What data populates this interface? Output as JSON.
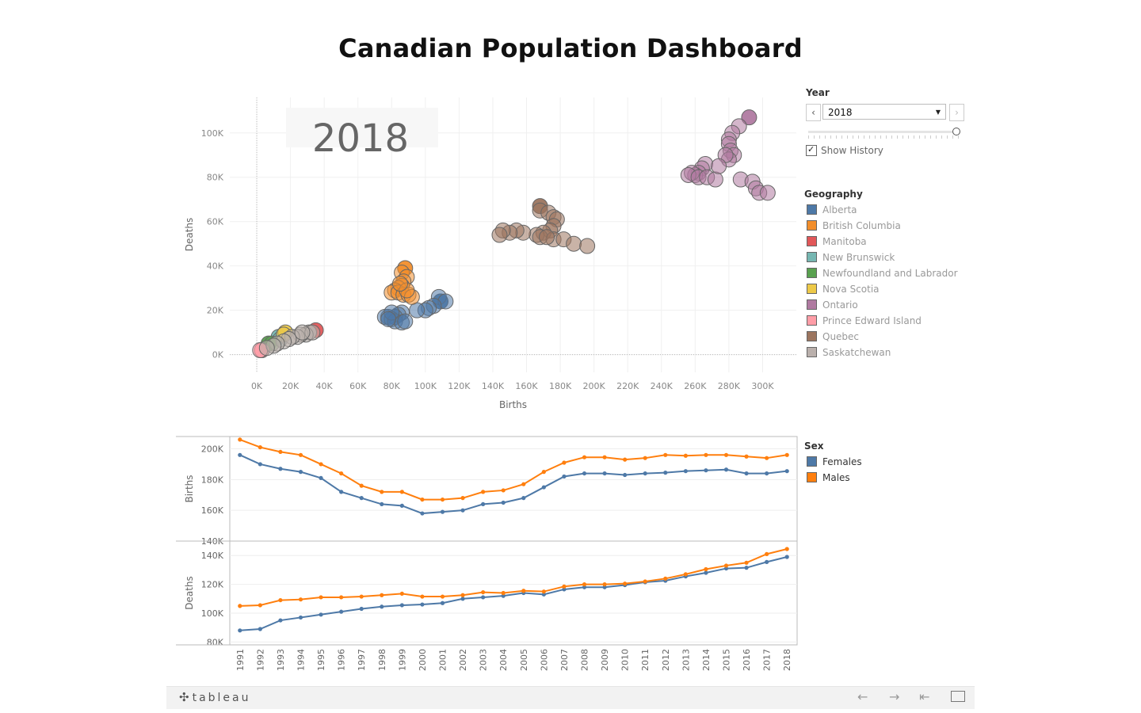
{
  "title": "Canadian Population Dashboard",
  "year_filter": {
    "label": "Year",
    "value": "2018",
    "prev_icon": "chevron-left-icon",
    "next_icon": "chevron-right-icon",
    "history_label": "Show History",
    "history_checked": true
  },
  "geography_legend": {
    "title": "Geography",
    "items": [
      {
        "label": "Alberta",
        "color": "#4e79a7"
      },
      {
        "label": "British Columbia",
        "color": "#f28e2b"
      },
      {
        "label": "Manitoba",
        "color": "#e15759"
      },
      {
        "label": "New Brunswick",
        "color": "#76b7b2"
      },
      {
        "label": "Newfoundland and Labrador",
        "color": "#59a14f"
      },
      {
        "label": "Nova Scotia",
        "color": "#edc948"
      },
      {
        "label": "Ontario",
        "color": "#b07aa1"
      },
      {
        "label": "Prince Edward Island",
        "color": "#ff9da7"
      },
      {
        "label": "Quebec",
        "color": "#9c755f"
      },
      {
        "label": "Saskatchewan",
        "color": "#bab0ac"
      }
    ]
  },
  "sex_legend": {
    "title": "Sex",
    "items": [
      {
        "label": "Females",
        "color": "#4e79a7"
      },
      {
        "label": "Males",
        "color": "#ff7f0e"
      }
    ]
  },
  "footer": {
    "logo_text": "tableau",
    "logo_icon": "tableau-logo-icon",
    "icons": [
      "undo-icon",
      "redo-icon",
      "revert-icon",
      "fullscreen-icon"
    ]
  },
  "chart_data": [
    {
      "type": "scatter",
      "watermark": "2018",
      "xlabel": "Births",
      "ylabel": "Deaths",
      "xlim": [
        -16000,
        320000
      ],
      "ylim": [
        -8000,
        116000
      ],
      "x_ticks": [
        "0K",
        "20K",
        "40K",
        "60K",
        "80K",
        "100K",
        "120K",
        "140K",
        "160K",
        "180K",
        "200K",
        "220K",
        "240K",
        "260K",
        "280K",
        "300K"
      ],
      "x_tick_values": [
        0,
        20000,
        40000,
        60000,
        80000,
        100000,
        120000,
        140000,
        160000,
        180000,
        200000,
        220000,
        240000,
        260000,
        280000,
        300000
      ],
      "y_ticks": [
        "0K",
        "20K",
        "40K",
        "60K",
        "80K",
        "100K"
      ],
      "y_tick_values": [
        0,
        20000,
        40000,
        60000,
        80000,
        100000
      ],
      "series": [
        {
          "name": "Alberta",
          "color": "#4e79a7",
          "points": [
            [
              109000,
              24000
            ],
            [
              108000,
              26000
            ],
            [
              112000,
              24000
            ],
            [
              105000,
              22000
            ],
            [
              102000,
              21000
            ],
            [
              100000,
              20000
            ],
            [
              95000,
              20000
            ],
            [
              86000,
              19000
            ],
            [
              84000,
              18000
            ],
            [
              82000,
              17000
            ],
            [
              78000,
              17000
            ],
            [
              76000,
              17000
            ],
            [
              80000,
              16000
            ],
            [
              82000,
              15000
            ],
            [
              86000,
              14500
            ],
            [
              80000,
              19000
            ],
            [
              88000,
              15000
            ],
            [
              78000,
              16000
            ]
          ]
        },
        {
          "name": "British Columbia",
          "color": "#f28e2b",
          "points": [
            [
              88000,
              39000
            ],
            [
              86000,
              37000
            ],
            [
              89000,
              35000
            ],
            [
              87000,
              33000
            ],
            [
              86000,
              31000
            ],
            [
              84000,
              30000
            ],
            [
              82000,
              29000
            ],
            [
              80000,
              28000
            ],
            [
              84000,
              28000
            ],
            [
              87000,
              27000
            ],
            [
              90000,
              27000
            ],
            [
              92000,
              26000
            ],
            [
              89000,
              29000
            ],
            [
              85000,
              32000
            ]
          ]
        },
        {
          "name": "Manitoba",
          "color": "#e15759",
          "points": [
            [
              35000,
              11000
            ]
          ]
        },
        {
          "name": "New Brunswick",
          "color": "#76b7b2",
          "points": [
            [
              13000,
              8000
            ],
            [
              14000,
              7000
            ]
          ]
        },
        {
          "name": "Newfoundland and Labrador",
          "color": "#59a14f",
          "points": [
            [
              7000,
              5000
            ],
            [
              9000,
              5000
            ]
          ]
        },
        {
          "name": "Nova Scotia",
          "color": "#edc948",
          "points": [
            [
              17000,
              10000
            ],
            [
              16000,
              9000
            ]
          ]
        },
        {
          "name": "Ontario",
          "color": "#b07aa1",
          "points": [
            [
              292000,
              107000
            ],
            [
              286000,
              103000
            ],
            [
              282000,
              100000
            ],
            [
              280000,
              97000
            ],
            [
              280000,
              95000
            ],
            [
              281000,
              92000
            ],
            [
              283000,
              90000
            ],
            [
              280000,
              88000
            ],
            [
              278000,
              90000
            ],
            [
              266000,
              86000
            ],
            [
              264000,
              84000
            ],
            [
              262000,
              82000
            ],
            [
              260000,
              81000
            ],
            [
              258000,
              82000
            ],
            [
              256000,
              81000
            ],
            [
              262000,
              80000
            ],
            [
              267000,
              80000
            ],
            [
              272000,
              79000
            ],
            [
              274000,
              85000
            ],
            [
              287000,
              79000
            ],
            [
              294000,
              78000
            ],
            [
              296000,
              75000
            ],
            [
              298000,
              73000
            ],
            [
              303000,
              73000
            ]
          ]
        },
        {
          "name": "Prince Edward Island",
          "color": "#ff9da7",
          "points": [
            [
              3000,
              2000
            ],
            [
              2000,
              2000
            ]
          ]
        },
        {
          "name": "Quebec",
          "color": "#9c755f",
          "points": [
            [
              168000,
              67000
            ],
            [
              168000,
              65000
            ],
            [
              173000,
              64000
            ],
            [
              176000,
              62000
            ],
            [
              178000,
              61000
            ],
            [
              176000,
              58000
            ],
            [
              174000,
              56000
            ],
            [
              170000,
              55000
            ],
            [
              166000,
              54000
            ],
            [
              158000,
              55000
            ],
            [
              154000,
              56000
            ],
            [
              150000,
              55000
            ],
            [
              146000,
              56000
            ],
            [
              144000,
              54000
            ],
            [
              168000,
              53000
            ],
            [
              176000,
              52000
            ],
            [
              182000,
              52000
            ],
            [
              188000,
              50000
            ],
            [
              196000,
              49000
            ],
            [
              172000,
              53000
            ]
          ]
        },
        {
          "name": "Saskatchewan",
          "color": "#bab0ac",
          "points": [
            [
              31000,
              10000
            ],
            [
              29000,
              9000
            ],
            [
              26000,
              9000
            ],
            [
              24000,
              8000
            ],
            [
              21000,
              8000
            ],
            [
              19000,
              7000
            ],
            [
              16000,
              6000
            ],
            [
              12000,
              5000
            ],
            [
              10000,
              4000
            ],
            [
              6000,
              3000
            ],
            [
              33000,
              10000
            ],
            [
              27000,
              10000
            ]
          ]
        }
      ]
    },
    {
      "type": "line",
      "ylabel": "Births",
      "ylim": [
        140000,
        208000
      ],
      "y_ticks": [
        "200K",
        "180K",
        "160K",
        "140K"
      ],
      "y_tick_values": [
        200000,
        180000,
        160000,
        140000
      ],
      "x": [
        1991,
        1992,
        1993,
        1994,
        1995,
        1996,
        1997,
        1998,
        1999,
        2000,
        2001,
        2002,
        2003,
        2004,
        2005,
        2006,
        2007,
        2008,
        2009,
        2010,
        2011,
        2012,
        2013,
        2014,
        2015,
        2016,
        2017,
        2018
      ],
      "series": [
        {
          "name": "Females",
          "color": "#4e79a7",
          "values": [
            196000,
            190000,
            187000,
            185000,
            181000,
            172000,
            168000,
            164000,
            163000,
            158000,
            159000,
            160000,
            164000,
            165000,
            168000,
            175000,
            182000,
            184000,
            184000,
            183000,
            184000,
            184500,
            185500,
            186000,
            186500,
            184000,
            184000,
            185500
          ]
        },
        {
          "name": "Males",
          "color": "#ff7f0e",
          "values": [
            206000,
            201000,
            198000,
            196000,
            190000,
            184000,
            176000,
            172000,
            172000,
            167000,
            167000,
            168000,
            172000,
            173000,
            177000,
            185000,
            191000,
            194500,
            194500,
            193000,
            194000,
            196000,
            195500,
            196000,
            196000,
            195000,
            194000,
            196000
          ]
        }
      ]
    },
    {
      "type": "line",
      "ylabel": "Deaths",
      "ylim": [
        78000,
        150000
      ],
      "y_ticks": [
        "140K",
        "120K",
        "100K",
        "80K"
      ],
      "y_tick_values": [
        140000,
        120000,
        100000,
        80000
      ],
      "x": [
        1991,
        1992,
        1993,
        1994,
        1995,
        1996,
        1997,
        1998,
        1999,
        2000,
        2001,
        2002,
        2003,
        2004,
        2005,
        2006,
        2007,
        2008,
        2009,
        2010,
        2011,
        2012,
        2013,
        2014,
        2015,
        2016,
        2017,
        2018
      ],
      "series": [
        {
          "name": "Females",
          "color": "#4e79a7",
          "values": [
            88000,
            89000,
            95000,
            97000,
            99000,
            101000,
            103000,
            104500,
            105500,
            106000,
            107000,
            110000,
            111000,
            112000,
            114000,
            113000,
            116500,
            118000,
            118000,
            119500,
            121500,
            122500,
            125500,
            128000,
            131000,
            131500,
            135500,
            139000
          ]
        },
        {
          "name": "Males",
          "color": "#ff7f0e",
          "values": [
            105000,
            105500,
            109000,
            109500,
            111000,
            111000,
            111500,
            112500,
            113500,
            111500,
            111500,
            112500,
            114500,
            114000,
            115500,
            115000,
            118500,
            120000,
            120000,
            120500,
            122000,
            124000,
            127000,
            130500,
            133000,
            135000,
            141000,
            144500
          ]
        }
      ]
    }
  ]
}
